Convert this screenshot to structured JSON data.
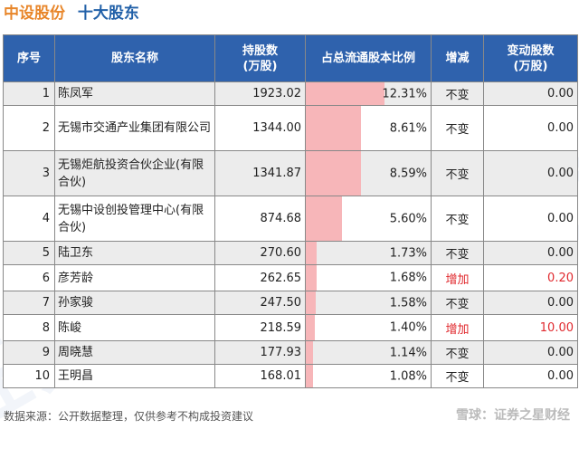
{
  "title": {
    "company": "中设股份",
    "section": "十大股东"
  },
  "watermark": "证券之星",
  "columns": [
    "序号",
    "股东名称",
    "持股数\n(万股)",
    "占总流通股本比例",
    "增减",
    "变动股数\n(万股)"
  ],
  "rows": [
    {
      "idx": "1",
      "name": "陈凤军",
      "shares": "1923.02",
      "ratio": "12.31%",
      "ratio_value": 12.31,
      "change": "不变",
      "delta": "0.00"
    },
    {
      "idx": "2",
      "name": "无锡市交通产业集团有限公司",
      "shares": "1344.00",
      "ratio": "8.61%",
      "ratio_value": 8.61,
      "change": "不变",
      "delta": "0.00"
    },
    {
      "idx": "3",
      "name": "无锡炬航投资合伙企业(有限合伙)",
      "shares": "1341.87",
      "ratio": "8.59%",
      "ratio_value": 8.59,
      "change": "不变",
      "delta": "0.00"
    },
    {
      "idx": "4",
      "name": "无锡中设创投管理中心(有限合伙)",
      "shares": "874.68",
      "ratio": "5.60%",
      "ratio_value": 5.6,
      "change": "不变",
      "delta": "0.00"
    },
    {
      "idx": "5",
      "name": "陆卫东",
      "shares": "270.60",
      "ratio": "1.73%",
      "ratio_value": 1.73,
      "change": "不变",
      "delta": "0.00"
    },
    {
      "idx": "6",
      "name": "彦芳龄",
      "shares": "262.65",
      "ratio": "1.68%",
      "ratio_value": 1.68,
      "change": "增加",
      "delta": "0.20"
    },
    {
      "idx": "7",
      "name": "孙家骏",
      "shares": "247.50",
      "ratio": "1.58%",
      "ratio_value": 1.58,
      "change": "不变",
      "delta": "0.00"
    },
    {
      "idx": "8",
      "name": "陈峻",
      "shares": "218.59",
      "ratio": "1.40%",
      "ratio_value": 1.4,
      "change": "增加",
      "delta": "10.00"
    },
    {
      "idx": "9",
      "name": "周晓慧",
      "shares": "177.93",
      "ratio": "1.14%",
      "ratio_value": 1.14,
      "change": "不变",
      "delta": "0.00"
    },
    {
      "idx": "10",
      "name": "王明昌",
      "shares": "168.01",
      "ratio": "1.08%",
      "ratio_value": 1.08,
      "change": "不变",
      "delta": "0.00"
    }
  ],
  "footer": "数据来源：公开数据整理，仅供参考不构成投资建议",
  "brand": "雪球：证券之星财经",
  "colors": {
    "header_bg": "#2f62ad",
    "bar": "#f7b6b9",
    "increase": "#e0292e",
    "title_company": "#e8862a",
    "title_section": "#2160a8"
  }
}
